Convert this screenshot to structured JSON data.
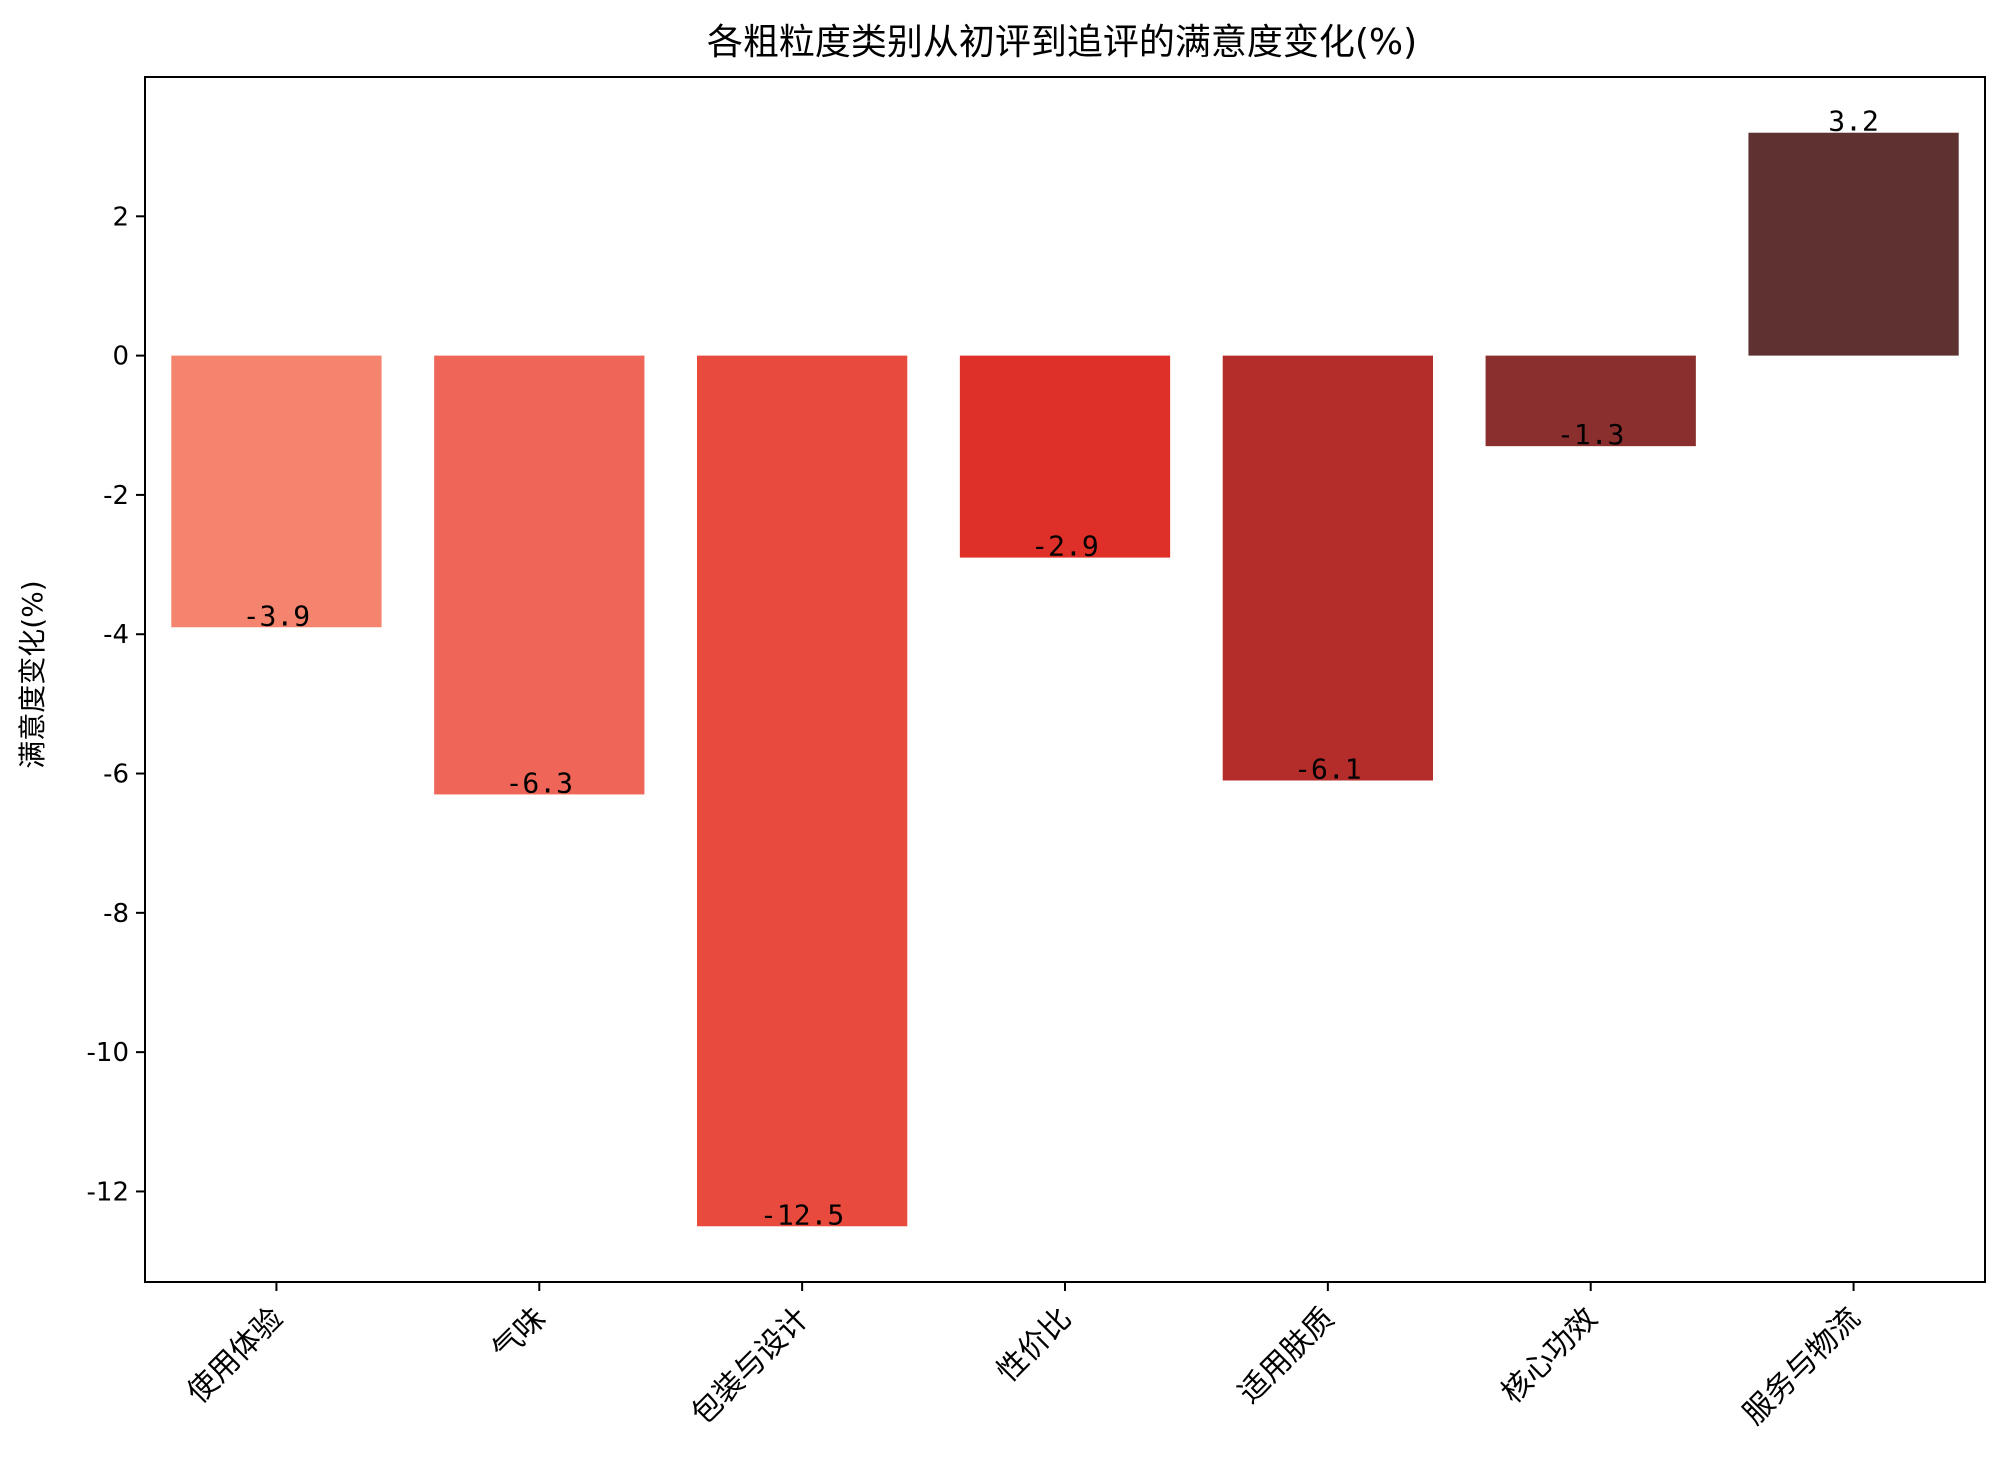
{
  "chart_data": {
    "type": "bar",
    "title": "各粗粒度类别从初评到追评的满意度变化(%)",
    "xlabel": "",
    "ylabel": "满意度变化(%)",
    "categories": [
      "使用体验",
      "气味",
      "包装与设计",
      "性价比",
      "适用肤质",
      "核心功效",
      "服务与物流"
    ],
    "values": [
      -3.9,
      -6.3,
      -12.5,
      -2.9,
      -6.1,
      -1.3,
      3.2
    ],
    "value_labels": [
      "-3.9",
      "-6.3",
      "-12.5",
      "-2.9",
      "-6.1",
      "-1.3",
      "3.2"
    ],
    "colors": [
      "#f5846e",
      "#ef6658",
      "#e84b3d",
      "#de2f28",
      "#b52d2a",
      "#8b2f2e",
      "#5e3230"
    ],
    "ylim": [
      -13.3,
      4.0
    ],
    "yticks": [
      2,
      0,
      -2,
      -4,
      -6,
      -8,
      -10,
      -12
    ],
    "ytick_labels": [
      "2",
      "0",
      "-2",
      "-4",
      "-6",
      "-8",
      "-10",
      "-12"
    ],
    "grid": false,
    "legend": "none"
  }
}
